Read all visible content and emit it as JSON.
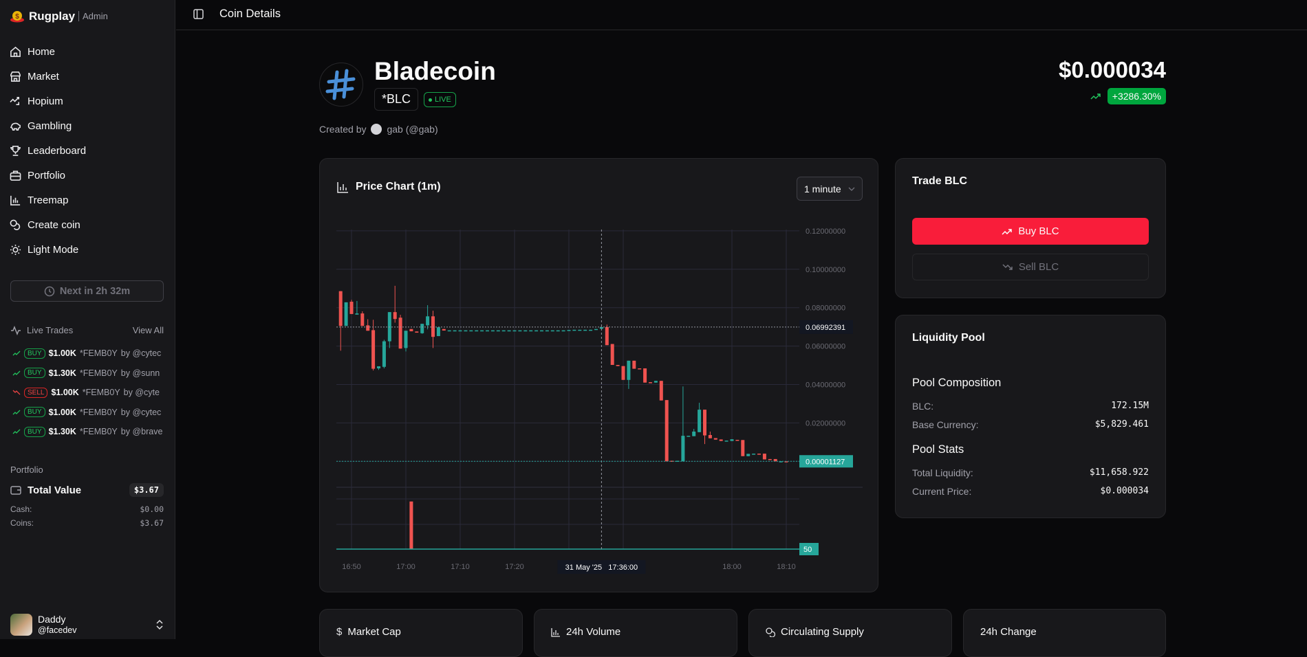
{
  "app": {
    "name": "Rugplay",
    "role": "Admin"
  },
  "header": {
    "title": "Coin Details"
  },
  "sidebar": {
    "nav": [
      {
        "label": "Home",
        "icon": "home-icon"
      },
      {
        "label": "Market",
        "icon": "store-icon"
      },
      {
        "label": "Hopium",
        "icon": "trending-icon"
      },
      {
        "label": "Gambling",
        "icon": "piggy-bank-icon"
      },
      {
        "label": "Leaderboard",
        "icon": "trophy-icon"
      },
      {
        "label": "Portfolio",
        "icon": "briefcase-icon"
      },
      {
        "label": "Treemap",
        "icon": "bar-chart-icon"
      },
      {
        "label": "Create coin",
        "icon": "coins-icon"
      },
      {
        "label": "Light Mode",
        "icon": "sun-icon"
      }
    ],
    "next_button": "Next in 2h 32m",
    "live_trades": {
      "title": "Live Trades",
      "view_all": "View All",
      "items": [
        {
          "type": "BUY",
          "amount": "$1.00K",
          "symbol": "*FEMB0Y",
          "by": "by @cytec"
        },
        {
          "type": "BUY",
          "amount": "$1.30K",
          "symbol": "*FEMB0Y",
          "by": "by @sunn"
        },
        {
          "type": "SELL",
          "amount": "$1.00K",
          "symbol": "*FEMB0Y",
          "by": "by @cyte"
        },
        {
          "type": "BUY",
          "amount": "$1.00K",
          "symbol": "*FEMB0Y",
          "by": "by @cytec"
        },
        {
          "type": "BUY",
          "amount": "$1.30K",
          "symbol": "*FEMB0Y",
          "by": "by @brave"
        }
      ]
    },
    "portfolio": {
      "title": "Portfolio",
      "total_label": "Total Value",
      "total": "$3.67",
      "cash_label": "Cash:",
      "cash": "$0.00",
      "coins_label": "Coins:",
      "coins": "$3.67"
    },
    "user": {
      "name": "Daddy",
      "handle": "@facedev"
    }
  },
  "coin": {
    "name": "Bladecoin",
    "symbol": "*BLC",
    "status": "LIVE",
    "price": "$0.000034",
    "change": "+3286.30%",
    "created_by_label": "Created by",
    "creator": "gab (@gab)"
  },
  "chart_card": {
    "title": "Price Chart (1m)",
    "interval": "1 minute"
  },
  "trade": {
    "title": "Trade BLC",
    "buy": "Buy BLC",
    "sell": "Sell BLC"
  },
  "pool": {
    "title": "Liquidity Pool",
    "composition_title": "Pool Composition",
    "composition": [
      {
        "k": "BLC:",
        "v": "172.15M"
      },
      {
        "k": "Base Currency:",
        "v": "$5,829.461"
      }
    ],
    "stats_title": "Pool Stats",
    "stats": [
      {
        "k": "Total Liquidity:",
        "v": "$11,658.922"
      },
      {
        "k": "Current Price:",
        "v": "$0.000034"
      }
    ]
  },
  "stat_cards": [
    {
      "label": "Market Cap",
      "icon": "dollar-icon"
    },
    {
      "label": "24h Volume",
      "icon": "bar-chart-icon"
    },
    {
      "label": "Circulating Supply",
      "icon": "coins-icon"
    },
    {
      "label": "24h Change",
      "icon": ""
    }
  ],
  "colors": {
    "up": "#26a69a",
    "down": "#ef5350",
    "buy_button": "#f91d3a",
    "live": "#22c55e",
    "change_badge": "#00a63e"
  },
  "chart_data": {
    "type": "candlestick",
    "ylim": [
      0,
      0.12
    ],
    "y_ticks": [
      "0.12000000",
      "0.10000000",
      "0.08000000",
      "0.06000000",
      "0.04000000",
      "0.02000000"
    ],
    "x_ticks": [
      "16:50",
      "17:00",
      "17:10",
      "17:20",
      "17:30",
      "17:40",
      "18:00",
      "18:10"
    ],
    "x_tick_labels": [
      "16:50",
      "17:00",
      "17:10",
      "17:20",
      "",
      "",
      "18:00",
      "18:10"
    ],
    "crosshair": {
      "time_label": "31 May '25   17:36:00",
      "time": "17:36",
      "price_label": "0.06992391",
      "price": 0.06992391
    },
    "last_price_label": "0.00001127",
    "last_price": 1.127e-05,
    "volume_label": "50",
    "volume": [
      {
        "time": "17:01",
        "level": 0.77
      }
    ],
    "grid": true,
    "candles_columns": [
      "time",
      "open",
      "high",
      "low",
      "close"
    ],
    "candles": [
      [
        "16:48",
        0.0886,
        0.0886,
        0.0576,
        0.0705
      ],
      [
        "16:49",
        0.0705,
        0.0828,
        0.0705,
        0.0828
      ],
      [
        "16:50",
        0.0831,
        0.0841,
        0.0767,
        0.0767
      ],
      [
        "16:51",
        0.0764,
        0.0835,
        0.0764,
        0.077
      ],
      [
        "16:52",
        0.077,
        0.0781,
        0.0705,
        0.0705
      ],
      [
        "16:53",
        0.0708,
        0.074,
        0.068,
        0.068
      ],
      [
        "16:54",
        0.0683,
        0.0737,
        0.0473,
        0.0482
      ],
      [
        "16:55",
        0.0484,
        0.0495,
        0.0476,
        0.0495
      ],
      [
        "16:56",
        0.0492,
        0.0633,
        0.0484,
        0.0625
      ],
      [
        "16:57",
        0.0625,
        0.0777,
        0.059,
        0.0777
      ],
      [
        "16:58",
        0.0777,
        0.0914,
        0.0722,
        0.0741
      ],
      [
        "16:59",
        0.0748,
        0.0763,
        0.0587,
        0.0587
      ],
      [
        "17:00",
        0.059,
        0.068,
        0.0572,
        0.068
      ],
      [
        "17:01",
        0.0689,
        0.0689,
        0.0677,
        0.0677
      ],
      [
        "17:02",
        0.0676,
        0.0676,
        0.067,
        0.067
      ],
      [
        "17:03",
        0.0667,
        0.0716,
        0.0664,
        0.0716
      ],
      [
        "17:04",
        0.0708,
        0.0813,
        0.0687,
        0.0755
      ],
      [
        "17:05",
        0.0755,
        0.0784,
        0.059,
        0.0648
      ],
      [
        "17:06",
        0.0652,
        0.0698,
        0.0652,
        0.0698
      ],
      [
        "17:07",
        0.0689,
        0.0689,
        0.0681,
        0.0681
      ],
      [
        "17:08",
        0.0681,
        0.0682,
        0.0681,
        0.0682
      ],
      [
        "17:09",
        0.0681,
        0.0682,
        0.0681,
        0.0682
      ],
      [
        "17:10",
        0.0681,
        0.0682,
        0.0681,
        0.0682
      ],
      [
        "17:11",
        0.0681,
        0.0682,
        0.0681,
        0.0682
      ],
      [
        "17:12",
        0.0681,
        0.0682,
        0.0681,
        0.0682
      ],
      [
        "17:13",
        0.0681,
        0.0682,
        0.0681,
        0.0682
      ],
      [
        "17:14",
        0.0681,
        0.0682,
        0.0681,
        0.0682
      ],
      [
        "17:15",
        0.0681,
        0.0682,
        0.0681,
        0.0682
      ],
      [
        "17:16",
        0.0681,
        0.0682,
        0.0681,
        0.0682
      ],
      [
        "17:17",
        0.0681,
        0.0682,
        0.0681,
        0.0682
      ],
      [
        "17:18",
        0.0681,
        0.0682,
        0.0681,
        0.0682
      ],
      [
        "17:19",
        0.0681,
        0.0682,
        0.0681,
        0.0682
      ],
      [
        "17:20",
        0.0681,
        0.0682,
        0.0681,
        0.0682
      ],
      [
        "17:21",
        0.0681,
        0.0682,
        0.0681,
        0.0682
      ],
      [
        "17:22",
        0.0681,
        0.0682,
        0.0681,
        0.0682
      ],
      [
        "17:23",
        0.0681,
        0.0682,
        0.0681,
        0.0682
      ],
      [
        "17:24",
        0.0681,
        0.0682,
        0.0681,
        0.0682
      ],
      [
        "17:25",
        0.0681,
        0.0682,
        0.0681,
        0.0682
      ],
      [
        "17:26",
        0.0681,
        0.0682,
        0.0681,
        0.0682
      ],
      [
        "17:27",
        0.0681,
        0.0682,
        0.0681,
        0.0682
      ],
      [
        "17:28",
        0.0681,
        0.0682,
        0.0681,
        0.0682
      ],
      [
        "17:29",
        0.0681,
        0.0682,
        0.0681,
        0.0682
      ],
      [
        "17:30",
        0.0682,
        0.0684,
        0.0682,
        0.0684
      ],
      [
        "17:31",
        0.0684,
        0.0685,
        0.0684,
        0.0685
      ],
      [
        "17:32",
        0.0684,
        0.0685,
        0.0684,
        0.0685
      ],
      [
        "17:33",
        0.0684,
        0.0685,
        0.0684,
        0.0685
      ],
      [
        "17:34",
        0.0684,
        0.0685,
        0.0684,
        0.0685
      ],
      [
        "17:35",
        0.0685,
        0.0689,
        0.0685,
        0.0689
      ],
      [
        "17:36",
        0.069,
        0.07,
        0.069,
        0.0699
      ],
      [
        "17:37",
        0.0699,
        0.0712,
        0.0605,
        0.0605
      ],
      [
        "17:38",
        0.0611,
        0.0611,
        0.0502,
        0.0502
      ],
      [
        "17:39",
        0.0502,
        0.0502,
        0.0496,
        0.0496
      ],
      [
        "17:40",
        0.0496,
        0.0496,
        0.0424,
        0.0424
      ],
      [
        "17:41",
        0.0424,
        0.0524,
        0.0377,
        0.0524
      ],
      [
        "17:42",
        0.0524,
        0.0524,
        0.0482,
        0.0482
      ],
      [
        "17:43",
        0.0484,
        0.0484,
        0.0482,
        0.0482
      ],
      [
        "17:44",
        0.0484,
        0.0484,
        0.041,
        0.041
      ],
      [
        "17:45",
        0.0412,
        0.0412,
        0.041,
        0.041
      ],
      [
        "17:46",
        0.041,
        0.0419,
        0.041,
        0.0419
      ],
      [
        "17:47",
        0.0419,
        0.0419,
        0.0317,
        0.0317
      ],
      [
        "17:48",
        0.0319,
        0.0319,
        1e-05,
        1e-05
      ],
      [
        "17:49",
        0.0003,
        0.0003,
        0.0002,
        0.0002
      ],
      [
        "17:50",
        0.0002,
        0.0003,
        0.0002,
        0.0003
      ],
      [
        "17:51",
        1e-05,
        0.039,
        1e-05,
        0.0133
      ],
      [
        "17:52",
        0.013,
        0.0133,
        0.013,
        0.0133
      ],
      [
        "17:53",
        0.0131,
        0.0169,
        0.0131,
        0.0155
      ],
      [
        "17:54",
        0.0152,
        0.0305,
        0.0152,
        0.0269
      ],
      [
        "17:55",
        0.0269,
        0.0269,
        0.009,
        0.0135
      ],
      [
        "17:56",
        0.0137,
        0.0155,
        0.012,
        0.012
      ],
      [
        "17:57",
        0.0121,
        0.0121,
        0.0113,
        0.0113
      ],
      [
        "17:58",
        0.0114,
        0.0114,
        0.0106,
        0.0106
      ],
      [
        "17:59",
        0.0106,
        0.0108,
        0.0106,
        0.0108
      ],
      [
        "18:00",
        0.0106,
        0.0115,
        0.0106,
        0.0115
      ],
      [
        "18:01",
        0.0112,
        0.0112,
        0.011,
        0.011
      ],
      [
        "18:02",
        0.0111,
        0.0111,
        0.0027,
        0.0027
      ],
      [
        "18:03",
        0.0027,
        0.0039,
        0.0027,
        0.0039
      ],
      [
        "18:04",
        0.0039,
        0.004,
        0.0039,
        0.004
      ],
      [
        "18:05",
        0.004,
        0.004,
        0.0039,
        0.0039
      ],
      [
        "18:06",
        0.004,
        0.004,
        0.001,
        0.001
      ],
      [
        "18:07",
        0.0012,
        0.0012,
        0.001,
        0.001
      ],
      [
        "18:08",
        0.0012,
        0.0012,
        1e-05,
        1e-05
      ],
      [
        "18:09",
        1e-05,
        2e-05,
        1e-05,
        2e-05
      ],
      [
        "18:10",
        2e-05,
        2e-05,
        1e-05,
        1e-05
      ]
    ]
  }
}
